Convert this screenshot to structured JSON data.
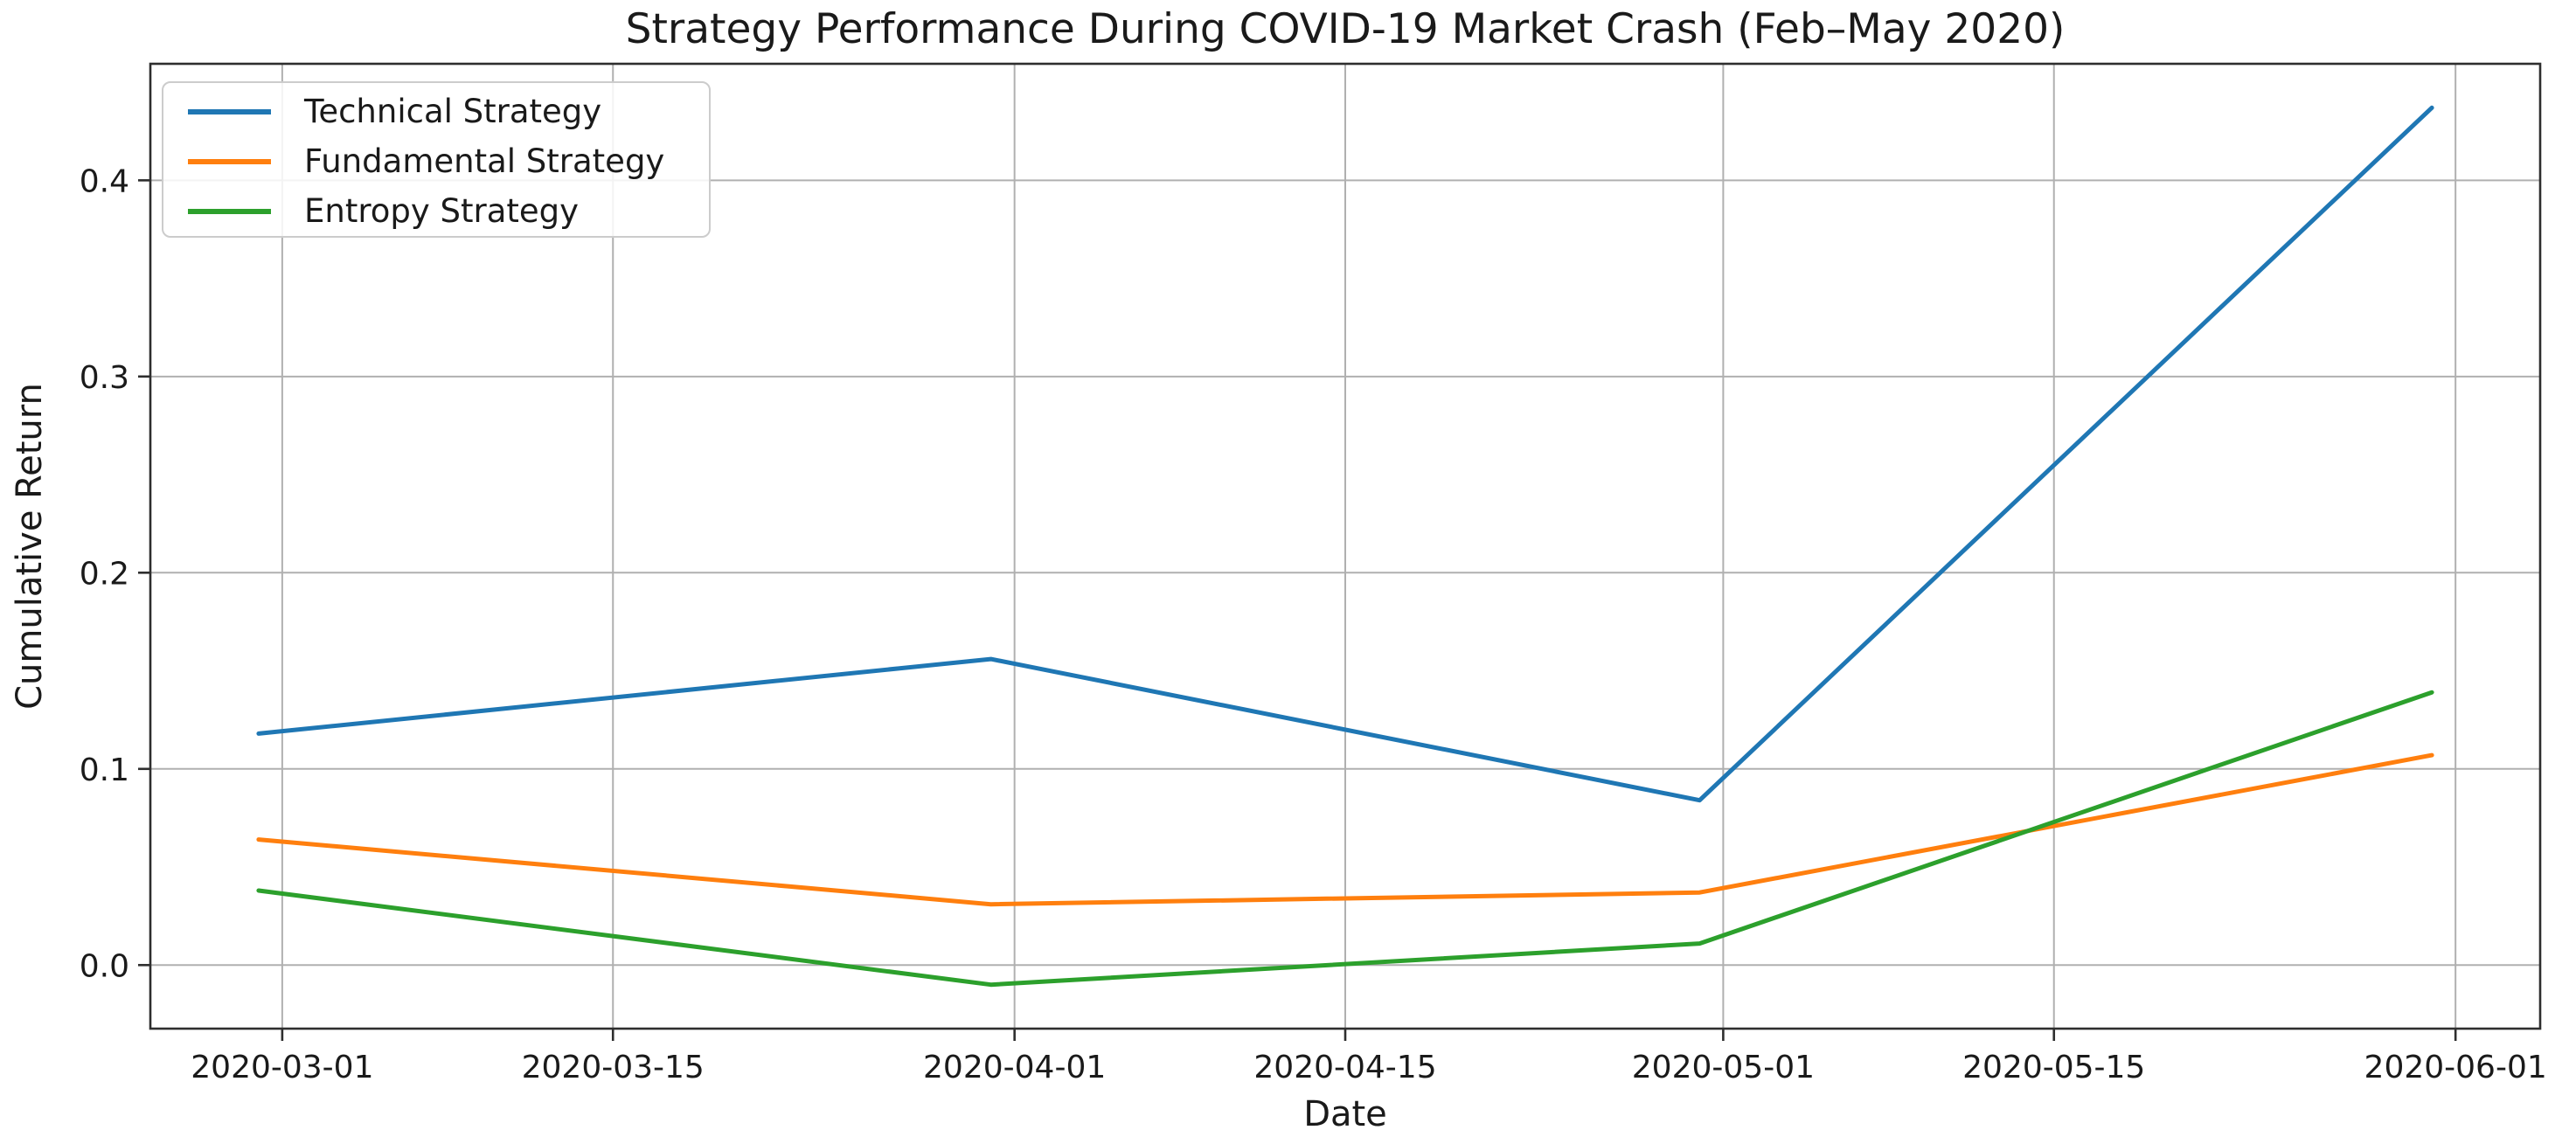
{
  "chart_data": {
    "type": "line",
    "title": "Strategy Performance During COVID-19 Market Crash (Feb–May 2020)",
    "xlabel": "Date",
    "ylabel": "Cumulative Return",
    "x": [
      "2020-02-29",
      "2020-03-31",
      "2020-04-30",
      "2020-05-31"
    ],
    "series": [
      {
        "name": "Technical Strategy",
        "color": "#1f77b4",
        "values": [
          0.118,
          0.156,
          0.084,
          0.437
        ]
      },
      {
        "name": "Fundamental Strategy",
        "color": "#ff7f0e",
        "values": [
          0.064,
          0.031,
          0.037,
          0.107
        ]
      },
      {
        "name": "Entropy Strategy",
        "color": "#2ca02c",
        "values": [
          0.038,
          -0.01,
          0.011,
          0.139
        ]
      }
    ],
    "x_ticks": [
      "2020-03-01",
      "2020-03-15",
      "2020-04-01",
      "2020-04-15",
      "2020-05-01",
      "2020-05-15",
      "2020-06-01"
    ],
    "y_ticks": [
      "0.0",
      "0.1",
      "0.2",
      "0.3",
      "0.4"
    ],
    "xlim": [
      "2020-02-24T10:00:00Z",
      "2020-06-04T14:00:00Z"
    ],
    "ylim": [
      -0.0324,
      0.4594
    ],
    "grid": true,
    "legend_position": "upper left",
    "grid_color": "#b0b0b0",
    "axis_color": "#2e2e2e",
    "background_color": "#ffffff"
  }
}
